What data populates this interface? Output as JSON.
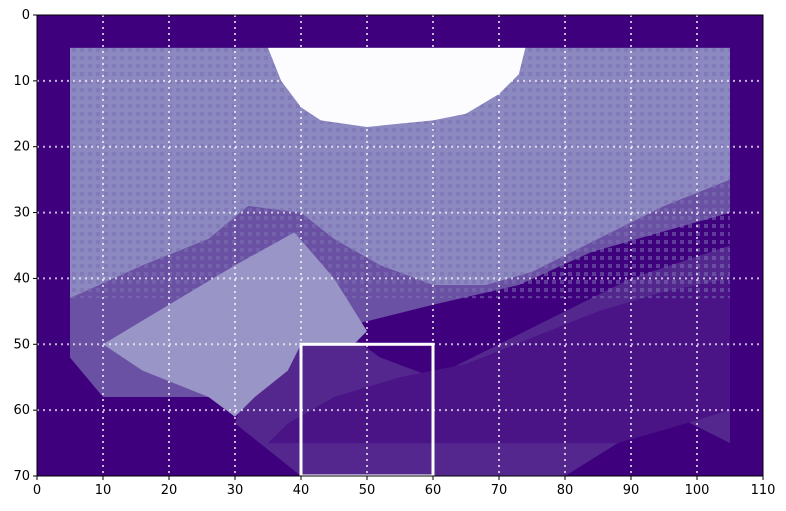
{
  "chart_data": {
    "type": "heatmap",
    "title": "",
    "xlabel": "",
    "ylabel": "",
    "xlim": [
      0,
      110
    ],
    "ylim": [
      70,
      0
    ],
    "y_axis_inverted": true,
    "xticks": [
      0,
      10,
      20,
      30,
      40,
      50,
      60,
      70,
      80,
      90,
      100,
      110
    ],
    "yticks": [
      0,
      10,
      20,
      30,
      40,
      50,
      60,
      70
    ],
    "grid": true,
    "grid_style": "dotted",
    "grid_color": "#ffffff",
    "colormap": "Purples",
    "colors": {
      "background": "#3f007d",
      "dark_band": "#4a1486",
      "mid_dark_band": "#54278f",
      "mid_band": "#6a51a3",
      "light_region": "#8c89c0",
      "lighter_region": "#9996c7",
      "white_region": "#fcfbfd"
    },
    "regions": [
      {
        "name": "background",
        "value_level": 0,
        "color": "#3f007d"
      },
      {
        "name": "frame",
        "value_level": 3,
        "color": "#8c89c0",
        "x": [
          5,
          105
        ],
        "y": [
          5,
          50
        ]
      },
      {
        "name": "white-cap",
        "value_level": 6,
        "color": "#fcfbfd",
        "x": [
          35,
          74
        ],
        "y": [
          5,
          17
        ]
      },
      {
        "name": "light-wedge",
        "value_level": 4,
        "color": "#9996c7",
        "x": [
          10,
          48
        ],
        "y": [
          32,
          61
        ]
      }
    ],
    "highlight_box": {
      "x": [
        40,
        60
      ],
      "y": [
        50,
        70
      ],
      "color": "#ffffff"
    }
  }
}
